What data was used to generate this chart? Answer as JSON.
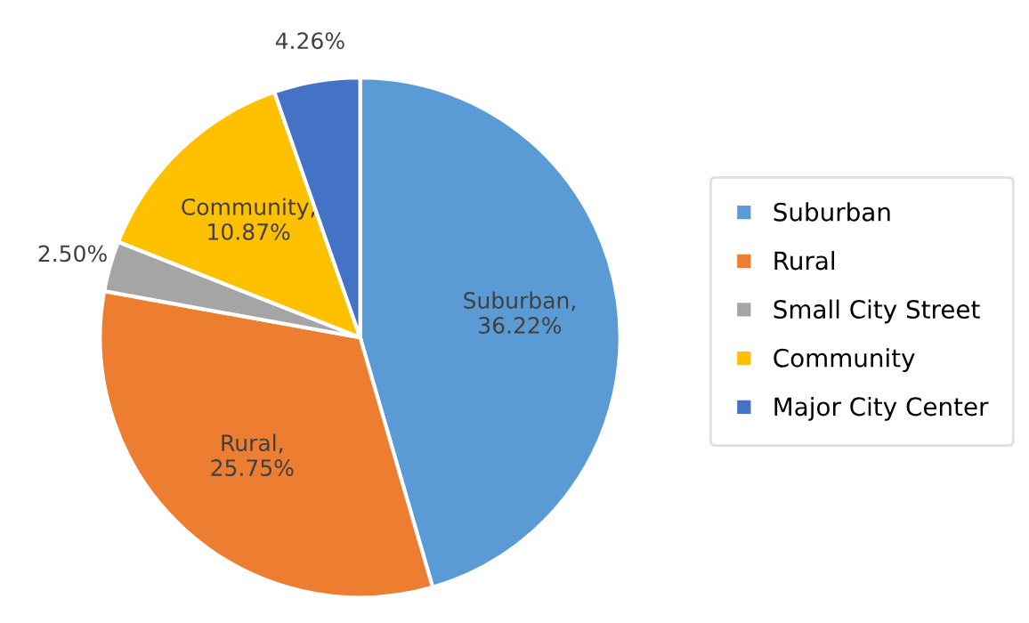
{
  "chart_data": {
    "type": "pie",
    "categories": [
      "Suburban",
      "Rural",
      "Small City Street",
      "Community",
      "Major City Center"
    ],
    "values": [
      36.22,
      25.75,
      2.5,
      10.87,
      4.26
    ],
    "colors": [
      "#5b9bd5",
      "#ed7d31",
      "#a5a5a5",
      "#ffc000",
      "#4472c4"
    ],
    "value_labels": [
      "Suburban,\n36.22%",
      "Rural,\n25.75%",
      "2.50%",
      "Community,\n10.87%",
      "4.26%"
    ],
    "legend": "right"
  }
}
